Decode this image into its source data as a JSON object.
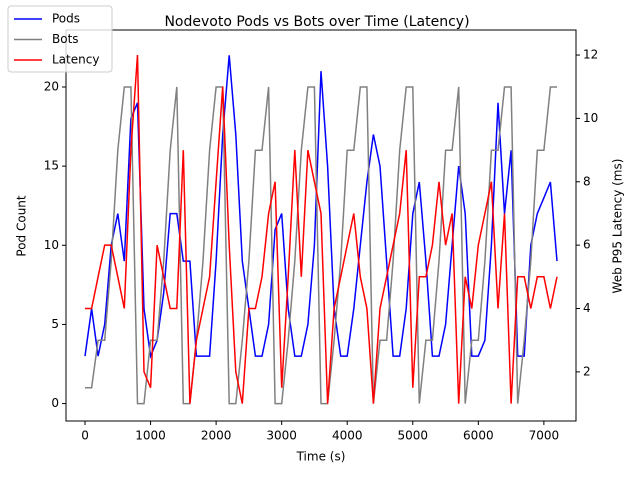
{
  "chart_data": {
    "type": "line",
    "title": "Nodevoto Pods vs Bots over Time (Latency)",
    "xlabel": "Time (s)",
    "ylabel": "Pod Count",
    "y2label": "Web P95 Latency (ms)",
    "x": [
      0,
      100,
      200,
      300,
      400,
      500,
      600,
      700,
      800,
      900,
      1000,
      1100,
      1200,
      1300,
      1400,
      1500,
      1600,
      1700,
      1800,
      1900,
      2000,
      2100,
      2200,
      2300,
      2400,
      2500,
      2600,
      2700,
      2800,
      2900,
      3000,
      3100,
      3200,
      3300,
      3400,
      3500,
      3600,
      3700,
      3800,
      3900,
      4000,
      4100,
      4200,
      4300,
      4400,
      4500,
      4600,
      4700,
      4800,
      4900,
      5000,
      5100,
      5200,
      5300,
      5400,
      5500,
      5600,
      5700,
      5800,
      5900,
      6000,
      6100,
      6200,
      6300,
      6400,
      6500,
      6600,
      6700,
      6800,
      6900,
      7000,
      7100,
      7200
    ],
    "series": [
      {
        "name": "Pods",
        "color": "#0000ff",
        "values": [
          3,
          6,
          3,
          5,
          10,
          12,
          9,
          18,
          19,
          6,
          3,
          4,
          7,
          12,
          12,
          9,
          9,
          3,
          3,
          3,
          9,
          17,
          22,
          17,
          9,
          6,
          3,
          3,
          5,
          11,
          12,
          6,
          3,
          3,
          5,
          10,
          21,
          15,
          6,
          3,
          3,
          6,
          10,
          14,
          17,
          15,
          9,
          3,
          3,
          6,
          12,
          14,
          9,
          3,
          3,
          5,
          10,
          15,
          12,
          3,
          3,
          4,
          10,
          19,
          12,
          16,
          3,
          3,
          10,
          12,
          13,
          14,
          9
        ]
      },
      {
        "name": "Bots",
        "color": "#808080",
        "values": [
          1,
          1,
          4,
          4,
          9,
          16,
          20,
          20,
          0,
          0,
          4,
          4,
          9,
          16,
          20,
          0,
          0,
          4,
          9,
          16,
          20,
          20,
          0,
          0,
          4,
          9,
          16,
          16,
          20,
          0,
          0,
          4,
          9,
          16,
          20,
          20,
          0,
          0,
          4,
          9,
          16,
          16,
          20,
          20,
          0,
          4,
          4,
          9,
          16,
          20,
          20,
          0,
          4,
          4,
          9,
          16,
          16,
          20,
          0,
          4,
          4,
          9,
          16,
          16,
          20,
          20,
          0,
          4,
          9,
          16,
          16,
          20,
          20
        ]
      },
      {
        "name": "Latency",
        "color": "#ff0000",
        "axis": "y2",
        "values": [
          4,
          4,
          5,
          6,
          6,
          5,
          4,
          9,
          12,
          2,
          1.5,
          6,
          5,
          4,
          4,
          9,
          1,
          3,
          4,
          5,
          8,
          11,
          6,
          2,
          1,
          4,
          4,
          5,
          7,
          8,
          1.5,
          5,
          9,
          5,
          9,
          8,
          7,
          1,
          4,
          5,
          6,
          7,
          5,
          4,
          1,
          4,
          5,
          6,
          7,
          9,
          1.5,
          5,
          5,
          6,
          8,
          6,
          7,
          1,
          5,
          4,
          6,
          7,
          8,
          4,
          7,
          1,
          5,
          5,
          4,
          5,
          5,
          4,
          5
        ]
      }
    ],
    "xlim": [
      -290,
      7490
    ],
    "xticks": [
      0,
      1000,
      2000,
      3000,
      4000,
      5000,
      6000,
      7000
    ],
    "ylim": [
      -1.1,
      23.6
    ],
    "yticks": [
      0,
      5,
      10,
      15,
      20
    ],
    "y2lim": [
      0.45,
      12.79
    ],
    "y2ticks": [
      2,
      4,
      6,
      8,
      10,
      12
    ],
    "legend": "upper left"
  }
}
